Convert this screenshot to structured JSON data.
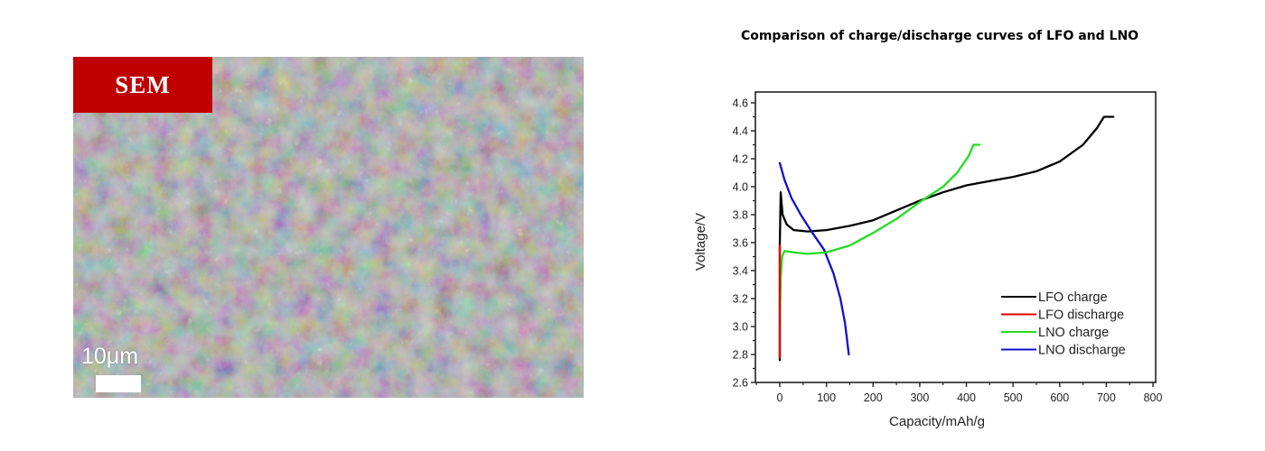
{
  "sem_image": {
    "label": "SEM",
    "scale_bar_text": "10μm",
    "label_color": "#c00000"
  },
  "chart_title": "Comparison of charge/discharge curves of LFO and LNO",
  "chart_data": {
    "type": "line",
    "title": "Comparison of charge/discharge curves of LFO and LNO",
    "xlabel": "Capacity/mAh/g",
    "ylabel": "Voltage/V",
    "xlim": [
      -50,
      800
    ],
    "ylim": [
      2.6,
      4.7
    ],
    "x_ticks": [
      0,
      100,
      200,
      300,
      400,
      500,
      600,
      700,
      800
    ],
    "y_ticks": [
      2.6,
      2.8,
      3.0,
      3.2,
      3.4,
      3.6,
      3.8,
      4.0,
      4.2,
      4.4,
      4.6
    ],
    "grid": false,
    "legend_position": "lower right",
    "series": [
      {
        "name": "LFO charge",
        "color": "#000000",
        "points": [
          [
            0,
            2.76
          ],
          [
            0,
            3.58
          ],
          [
            2,
            3.96
          ],
          [
            6,
            3.8
          ],
          [
            15,
            3.73
          ],
          [
            30,
            3.69
          ],
          [
            60,
            3.68
          ],
          [
            100,
            3.69
          ],
          [
            150,
            3.72
          ],
          [
            200,
            3.76
          ],
          [
            250,
            3.83
          ],
          [
            300,
            3.9
          ],
          [
            350,
            3.96
          ],
          [
            400,
            4.01
          ],
          [
            450,
            4.04
          ],
          [
            500,
            4.07
          ],
          [
            550,
            4.11
          ],
          [
            600,
            4.18
          ],
          [
            650,
            4.3
          ],
          [
            680,
            4.42
          ],
          [
            695,
            4.5
          ],
          [
            715,
            4.5
          ]
        ]
      },
      {
        "name": "LFO discharge",
        "color": "#e00000",
        "points": [
          [
            0,
            2.78
          ],
          [
            0,
            3.02
          ],
          [
            0,
            3.58
          ]
        ]
      },
      {
        "name": "LNO charge",
        "color": "#22dd22",
        "points": [
          [
            0,
            3.02
          ],
          [
            2,
            3.35
          ],
          [
            5,
            3.5
          ],
          [
            10,
            3.54
          ],
          [
            30,
            3.53
          ],
          [
            60,
            3.52
          ],
          [
            100,
            3.53
          ],
          [
            150,
            3.58
          ],
          [
            200,
            3.67
          ],
          [
            250,
            3.77
          ],
          [
            300,
            3.89
          ],
          [
            350,
            4.0
          ],
          [
            380,
            4.1
          ],
          [
            405,
            4.22
          ],
          [
            415,
            4.3
          ],
          [
            428,
            4.3
          ]
        ]
      },
      {
        "name": "LNO discharge",
        "color": "#1010cc",
        "points": [
          [
            0,
            4.17
          ],
          [
            10,
            4.05
          ],
          [
            25,
            3.92
          ],
          [
            45,
            3.8
          ],
          [
            70,
            3.67
          ],
          [
            95,
            3.55
          ],
          [
            115,
            3.38
          ],
          [
            130,
            3.2
          ],
          [
            140,
            3.02
          ],
          [
            148,
            2.8
          ]
        ]
      }
    ]
  }
}
